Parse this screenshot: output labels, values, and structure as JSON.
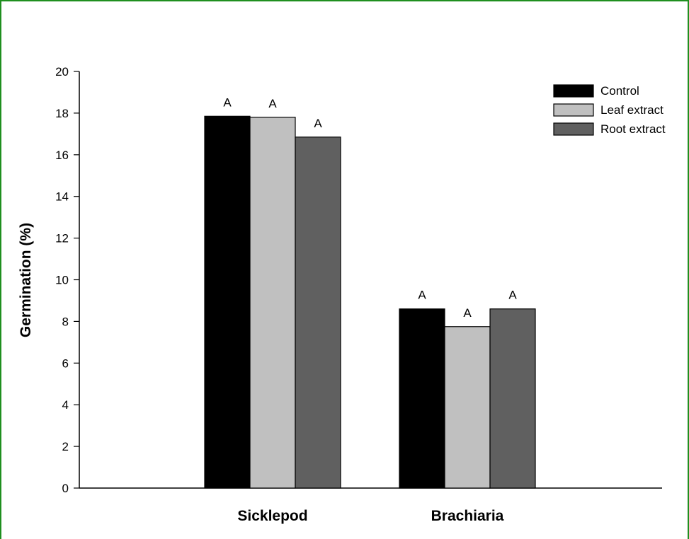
{
  "chart_data": {
    "type": "bar",
    "title": "",
    "xlabel": "",
    "ylabel": "Germination (%)",
    "categories": [
      "Sicklepod",
      "Brachiaria"
    ],
    "ylim": [
      0,
      20
    ],
    "yticks": [
      0,
      2,
      4,
      6,
      8,
      10,
      12,
      14,
      16,
      18,
      20
    ],
    "grid": false,
    "legend_position": "top-right",
    "series": [
      {
        "name": "Control",
        "values": [
          17.85,
          8.6
        ],
        "labels": [
          "A",
          "A"
        ],
        "color": "#000000"
      },
      {
        "name": "Leaf extract",
        "values": [
          17.8,
          7.75
        ],
        "labels": [
          "A",
          "A"
        ],
        "color": "#c0c0c0"
      },
      {
        "name": "Root extract",
        "values": [
          16.85,
          8.6
        ],
        "labels": [
          "A",
          "A"
        ],
        "color": "#606060"
      }
    ]
  },
  "colors": {
    "border": "#1f8f1f"
  }
}
